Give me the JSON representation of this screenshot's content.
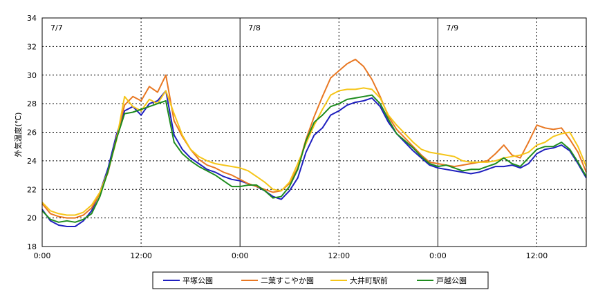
{
  "chart_data": {
    "type": "line",
    "title": "",
    "ylabel": "外気温度(℃)",
    "xlabel": "",
    "ylim": [
      18,
      34
    ],
    "y_ticks": [
      18,
      20,
      22,
      24,
      26,
      28,
      30,
      32,
      34
    ],
    "xlim": [
      0,
      66
    ],
    "x_tick_hours": [
      0,
      12,
      24,
      36,
      48,
      60
    ],
    "x_tick_labels": [
      "0:00",
      "12:00",
      "0:00",
      "12:00",
      "0:00",
      "12:00"
    ],
    "day_labels": [
      {
        "hour": 0,
        "text": "7/7"
      },
      {
        "hour": 24,
        "text": "7/8"
      },
      {
        "hour": 48,
        "text": "7/9"
      }
    ],
    "grid": true,
    "legend_position": "bottom",
    "x_hours": [
      0,
      1,
      2,
      3,
      4,
      5,
      6,
      7,
      8,
      9,
      10,
      11,
      12,
      13,
      14,
      15,
      16,
      17,
      18,
      19,
      20,
      21,
      22,
      23,
      24,
      25,
      26,
      27,
      28,
      29,
      30,
      31,
      32,
      33,
      34,
      35,
      36,
      37,
      38,
      39,
      40,
      41,
      42,
      43,
      44,
      45,
      46,
      47,
      48,
      49,
      50,
      51,
      52,
      53,
      54,
      55,
      56,
      57,
      58,
      59,
      60,
      61,
      62,
      63,
      64,
      65,
      66
    ],
    "series": [
      {
        "name": "平塚公園",
        "color": "#1f1fbf",
        "values": [
          20.6,
          19.8,
          19.5,
          19.4,
          19.4,
          19.8,
          20.5,
          21.8,
          23.5,
          25.8,
          27.5,
          27.8,
          27.2,
          28.0,
          28.2,
          28.9,
          25.8,
          24.8,
          24.2,
          23.8,
          23.4,
          23.2,
          22.9,
          22.7,
          22.6,
          22.4,
          22.2,
          21.9,
          21.5,
          21.3,
          21.9,
          22.8,
          24.6,
          25.8,
          26.3,
          27.2,
          27.5,
          27.9,
          28.1,
          28.2,
          28.4,
          27.8,
          26.7,
          25.9,
          25.3,
          24.7,
          24.2,
          23.7,
          23.5,
          23.4,
          23.3,
          23.2,
          23.1,
          23.2,
          23.4,
          23.6,
          23.6,
          23.7,
          23.5,
          23.8,
          24.5,
          24.8,
          24.9,
          25.1,
          24.7,
          23.8,
          22.8
        ]
      },
      {
        "name": "二葉すこやか園",
        "color": "#e87722",
        "values": [
          21.0,
          20.3,
          20.1,
          20.0,
          20.0,
          20.2,
          20.7,
          21.7,
          23.2,
          25.6,
          27.9,
          28.5,
          28.2,
          29.2,
          28.8,
          30.0,
          26.8,
          25.7,
          24.8,
          24.1,
          23.7,
          23.5,
          23.2,
          23.0,
          22.7,
          22.4,
          22.2,
          22.0,
          21.8,
          21.9,
          22.4,
          23.5,
          25.5,
          27.1,
          28.5,
          29.8,
          30.3,
          30.8,
          31.1,
          30.6,
          29.7,
          28.5,
          27.1,
          26.2,
          25.6,
          25.0,
          24.4,
          23.9,
          23.8,
          23.7,
          23.6,
          23.7,
          23.8,
          23.9,
          24.0,
          24.5,
          25.1,
          24.4,
          24.2,
          25.3,
          26.5,
          26.3,
          26.2,
          26.3,
          25.5,
          24.6,
          23.2
        ]
      },
      {
        "name": "大井町駅前",
        "color": "#f5c518",
        "values": [
          21.1,
          20.5,
          20.3,
          20.2,
          20.2,
          20.4,
          20.9,
          21.8,
          23.3,
          25.4,
          28.5,
          27.8,
          27.5,
          28.3,
          28.0,
          28.9,
          27.3,
          25.8,
          24.8,
          24.3,
          24.0,
          23.8,
          23.7,
          23.6,
          23.5,
          23.3,
          22.9,
          22.5,
          22.0,
          21.9,
          22.5,
          23.8,
          25.2,
          26.5,
          27.6,
          28.6,
          28.9,
          29.0,
          29.0,
          29.1,
          29.0,
          28.4,
          27.2,
          26.5,
          25.9,
          25.3,
          24.8,
          24.6,
          24.5,
          24.4,
          24.3,
          24.0,
          23.9,
          23.9,
          23.9,
          24.0,
          24.2,
          24.3,
          24.4,
          24.6,
          25.1,
          25.3,
          25.7,
          25.9,
          26.0,
          25.0,
          23.6
        ]
      },
      {
        "name": "戸越公園",
        "color": "#1e8c1e",
        "values": [
          20.5,
          19.9,
          19.7,
          19.8,
          19.7,
          19.9,
          20.3,
          21.5,
          23.3,
          25.5,
          27.3,
          27.4,
          27.6,
          27.8,
          28.0,
          28.2,
          25.3,
          24.5,
          24.0,
          23.6,
          23.3,
          23.0,
          22.6,
          22.2,
          22.2,
          22.3,
          22.3,
          21.9,
          21.4,
          21.5,
          22.2,
          23.4,
          25.4,
          26.7,
          27.2,
          27.8,
          28.0,
          28.3,
          28.4,
          28.5,
          28.6,
          28.0,
          26.9,
          25.9,
          25.4,
          24.9,
          24.3,
          23.8,
          23.6,
          23.7,
          23.5,
          23.3,
          23.4,
          23.4,
          23.6,
          23.8,
          24.2,
          23.8,
          23.6,
          24.2,
          24.8,
          25.0,
          25.0,
          25.3,
          24.8,
          23.9,
          22.9
        ]
      }
    ]
  }
}
